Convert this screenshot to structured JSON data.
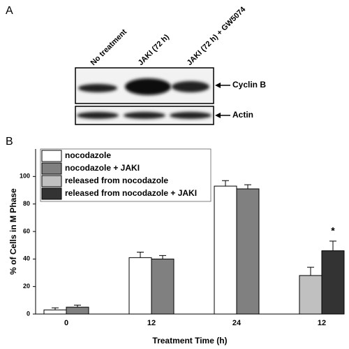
{
  "panel_labels": [
    "A",
    "B"
  ],
  "blot": {
    "lanes": [
      "No treatment",
      "JAKI (72 h)",
      "JAKI (72 h) + GW5074"
    ],
    "bands": [
      "Cyclin B",
      "Actin"
    ]
  },
  "chart_data": {
    "type": "bar",
    "categories": [
      "0",
      "12",
      "24",
      "12"
    ],
    "series": [
      {
        "name": "nocodazole",
        "color": "#ffffff",
        "values": [
          3,
          41,
          93,
          null
        ],
        "errors": [
          1.5,
          4,
          4,
          null
        ]
      },
      {
        "name": "nocodazole + JAKI",
        "color": "#808080",
        "values": [
          5,
          40,
          91,
          null
        ],
        "errors": [
          1.5,
          2.5,
          3,
          null
        ]
      },
      {
        "name": "released from nocodazole",
        "color": "#c0c0c0",
        "values": [
          null,
          null,
          null,
          28
        ],
        "errors": [
          null,
          null,
          null,
          6
        ]
      },
      {
        "name": "released from nocodazole + JAKI",
        "color": "#333333",
        "values": [
          null,
          null,
          null,
          46
        ],
        "errors": [
          null,
          null,
          null,
          7
        ]
      }
    ],
    "annotation": "*",
    "ylabel": "% of Cells in M Phase",
    "xlabel": "Treatment Time (h)",
    "ylim": [
      0,
      120
    ],
    "yticks": [
      0,
      20,
      40,
      60,
      80,
      100
    ]
  }
}
